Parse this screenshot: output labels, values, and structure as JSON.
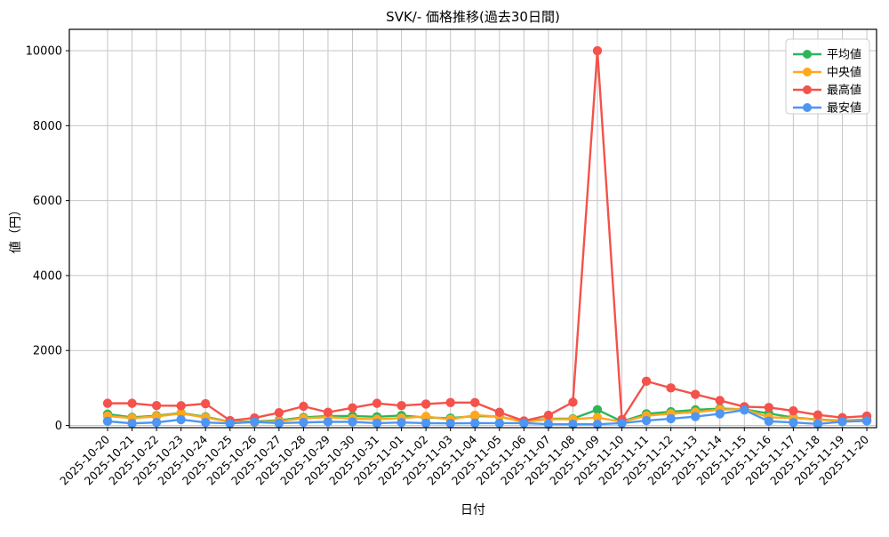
{
  "chart_data": {
    "type": "line",
    "title": "SVK/- 価格推移(過去30日間)",
    "xlabel": "日付",
    "ylabel": "値（円）",
    "ylim": [
      -500,
      10500
    ],
    "yticks": [
      0,
      2000,
      4000,
      6000,
      8000,
      10000
    ],
    "grid": true,
    "grid_color": "#c6c6c6",
    "frame_color": "#000000",
    "legend_position": "upper right",
    "x": [
      "2025-10-20",
      "2025-10-21",
      "2025-10-22",
      "2025-10-23",
      "2025-10-24",
      "2025-10-25",
      "2025-10-26",
      "2025-10-27",
      "2025-10-28",
      "2025-10-29",
      "2025-10-30",
      "2025-10-31",
      "2025-11-01",
      "2025-11-02",
      "2025-11-03",
      "2025-11-04",
      "2025-11-05",
      "2025-11-06",
      "2025-11-07",
      "2025-11-08",
      "2025-11-09",
      "2025-11-10",
      "2025-11-11",
      "2025-11-12",
      "2025-11-13",
      "2025-11-14",
      "2025-11-15",
      "2025-11-16",
      "2025-11-17",
      "2025-11-18",
      "2025-11-19",
      "2025-11-20"
    ],
    "series": [
      {
        "key": "average",
        "name": "平均値",
        "color": "#2eb55c",
        "values": [
          300,
          215,
          260,
          330,
          230,
          100,
          105,
          135,
          215,
          250,
          250,
          230,
          265,
          210,
          195,
          250,
          235,
          100,
          180,
          180,
          420,
          105,
          310,
          365,
          415,
          450,
          430,
          320,
          212,
          155,
          130,
          160
        ]
      },
      {
        "key": "median",
        "name": "中央値",
        "color": "#ffa81d",
        "values": [
          250,
          195,
          240,
          320,
          212,
          95,
          85,
          110,
          190,
          220,
          180,
          165,
          195,
          240,
          160,
          275,
          235,
          90,
          165,
          165,
          212,
          95,
          260,
          313,
          353,
          420,
          440,
          215,
          200,
          150,
          120,
          150
        ]
      },
      {
        "key": "max",
        "name": "最高値",
        "color": "#f4524b",
        "values": [
          590,
          590,
          530,
          525,
          580,
          130,
          200,
          340,
          510,
          350,
          470,
          590,
          530,
          570,
          610,
          610,
          350,
          120,
          270,
          620,
          10000,
          155,
          1180,
          1000,
          830,
          665,
          500,
          480,
          390,
          280,
          210,
          250
        ]
      },
      {
        "key": "min",
        "name": "最安値",
        "color": "#4e96f3",
        "values": [
          110,
          55,
          80,
          155,
          78,
          55,
          90,
          60,
          80,
          95,
          95,
          60,
          78,
          60,
          55,
          60,
          60,
          60,
          35,
          30,
          30,
          60,
          130,
          180,
          235,
          310,
          410,
          110,
          78,
          40,
          100,
          120
        ]
      }
    ]
  }
}
